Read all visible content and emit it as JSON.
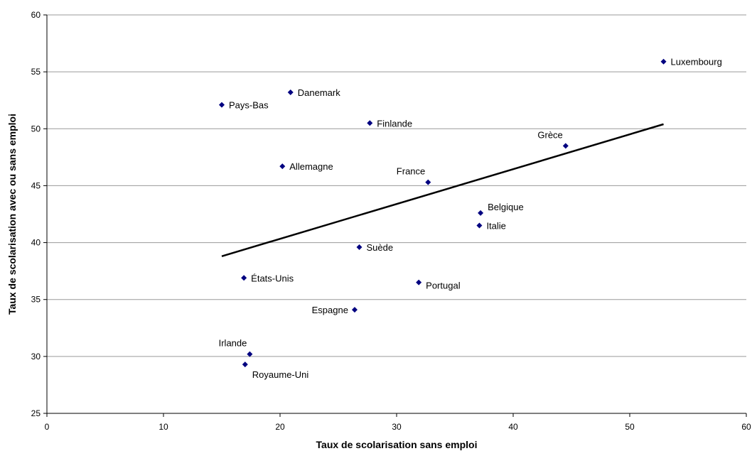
{
  "chart_data": {
    "type": "scatter",
    "title": "",
    "xlabel": "Taux de scolarisation sans emploi",
    "ylabel": "Taux de scolarisation avec ou sans emploi",
    "xlim": [
      0,
      60
    ],
    "ylim": [
      25,
      60
    ],
    "xticks": [
      0,
      10,
      20,
      30,
      40,
      50,
      60
    ],
    "yticks": [
      25,
      30,
      35,
      40,
      45,
      50,
      55,
      60
    ],
    "grid": "horizontal",
    "marker_color": "#000080",
    "trendline_color": "#000000",
    "points": [
      {
        "label": "Luxembourg",
        "x": 52.9,
        "y": 55.9,
        "label_pos": "right"
      },
      {
        "label": "Danemark",
        "x": 20.9,
        "y": 53.2,
        "label_pos": "right"
      },
      {
        "label": "Pays-Bas",
        "x": 15.0,
        "y": 52.1,
        "label_pos": "right"
      },
      {
        "label": "Finlande",
        "x": 27.7,
        "y": 50.5,
        "label_pos": "right"
      },
      {
        "label": "Grèce",
        "x": 44.5,
        "y": 48.5,
        "label_pos": "above-left"
      },
      {
        "label": "Allemagne",
        "x": 20.2,
        "y": 46.7,
        "label_pos": "right"
      },
      {
        "label": "France",
        "x": 32.7,
        "y": 45.3,
        "label_pos": "above-left"
      },
      {
        "label": "Belgique",
        "x": 37.2,
        "y": 42.6,
        "label_pos": "right-up"
      },
      {
        "label": "Italie",
        "x": 37.1,
        "y": 41.5,
        "label_pos": "right"
      },
      {
        "label": "Suède",
        "x": 26.8,
        "y": 39.6,
        "label_pos": "right"
      },
      {
        "label": "États-Unis",
        "x": 16.9,
        "y": 36.9,
        "label_pos": "right"
      },
      {
        "label": "Portugal",
        "x": 31.9,
        "y": 36.5,
        "label_pos": "right-down"
      },
      {
        "label": "Espagne",
        "x": 26.4,
        "y": 34.1,
        "label_pos": "left"
      },
      {
        "label": "Irlande",
        "x": 17.4,
        "y": 30.2,
        "label_pos": "above-left"
      },
      {
        "label": "Royaume-Uni",
        "x": 17.0,
        "y": 29.3,
        "label_pos": "below-right"
      }
    ],
    "trendline": {
      "x": [
        15.0,
        52.9
      ],
      "y": [
        38.8,
        50.4
      ]
    }
  }
}
